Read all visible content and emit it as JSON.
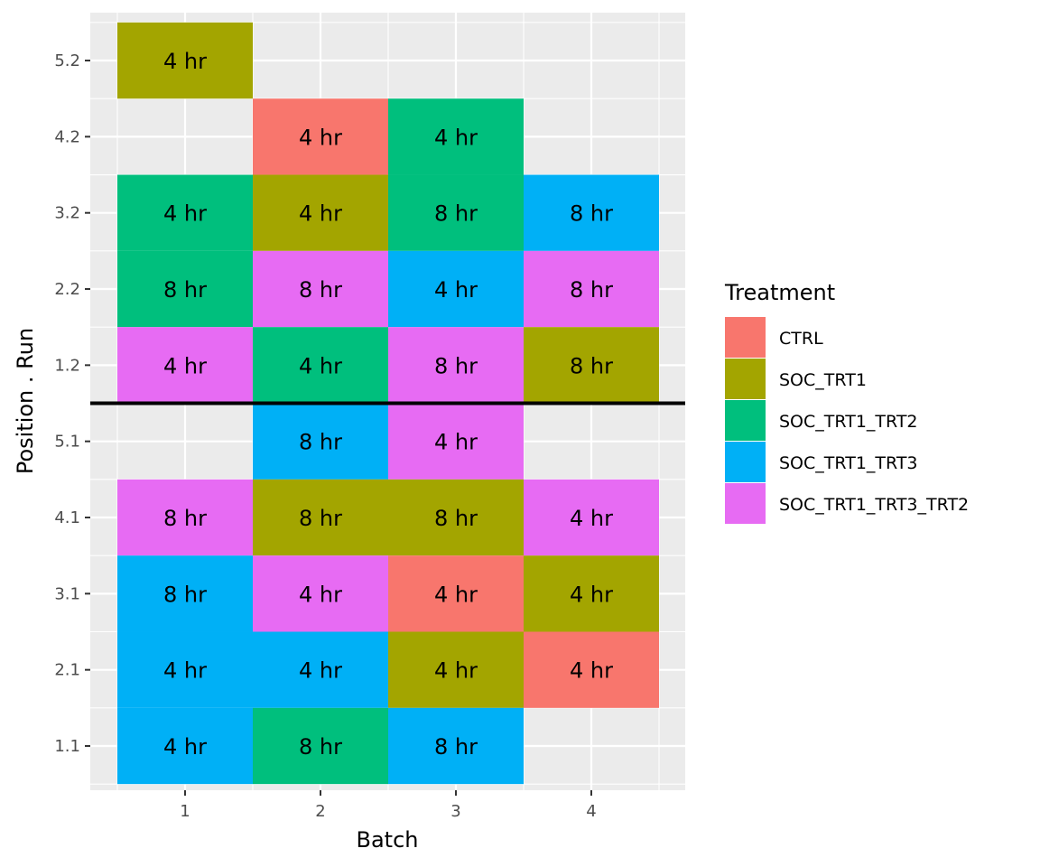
{
  "chart_data": {
    "type": "heatmap",
    "xlabel": "Batch",
    "ylabel": "Position . Run",
    "x_categories": [
      "1",
      "2",
      "3",
      "4"
    ],
    "y_categories": [
      "1.1",
      "2.1",
      "3.1",
      "4.1",
      "5.1",
      "1.2",
      "2.2",
      "3.2",
      "4.2",
      "5.2"
    ],
    "legend": {
      "title": "Treatment",
      "placement": "right",
      "entries": [
        {
          "name": "CTRL",
          "color": "#F8766D"
        },
        {
          "name": "SOC_TRT1",
          "color": "#A3A500"
        },
        {
          "name": "SOC_TRT1_TRT2",
          "color": "#00BF7D"
        },
        {
          "name": "SOC_TRT1_TRT3",
          "color": "#00B0F6"
        },
        {
          "name": "SOC_TRT1_TRT3_TRT2",
          "color": "#E76BF3"
        }
      ]
    },
    "reference_line": {
      "between": [
        "5.1",
        "1.2"
      ],
      "color": "#000000"
    },
    "grid": true,
    "cells": [
      {
        "x": "1",
        "y": "5.2",
        "treatment": "SOC_TRT1",
        "label": "4 hr"
      },
      {
        "x": "2",
        "y": "4.2",
        "treatment": "CTRL",
        "label": "4 hr"
      },
      {
        "x": "3",
        "y": "4.2",
        "treatment": "SOC_TRT1_TRT2",
        "label": "4 hr"
      },
      {
        "x": "1",
        "y": "3.2",
        "treatment": "SOC_TRT1_TRT2",
        "label": "4 hr"
      },
      {
        "x": "2",
        "y": "3.2",
        "treatment": "SOC_TRT1",
        "label": "4 hr"
      },
      {
        "x": "3",
        "y": "3.2",
        "treatment": "SOC_TRT1_TRT2",
        "label": "8 hr"
      },
      {
        "x": "4",
        "y": "3.2",
        "treatment": "SOC_TRT1_TRT3",
        "label": "8 hr"
      },
      {
        "x": "1",
        "y": "2.2",
        "treatment": "SOC_TRT1_TRT2",
        "label": "8 hr"
      },
      {
        "x": "2",
        "y": "2.2",
        "treatment": "SOC_TRT1_TRT3_TRT2",
        "label": "8 hr"
      },
      {
        "x": "3",
        "y": "2.2",
        "treatment": "SOC_TRT1_TRT3",
        "label": "4 hr"
      },
      {
        "x": "4",
        "y": "2.2",
        "treatment": "SOC_TRT1_TRT3_TRT2",
        "label": "8 hr"
      },
      {
        "x": "1",
        "y": "1.2",
        "treatment": "SOC_TRT1_TRT3_TRT2",
        "label": "4 hr"
      },
      {
        "x": "2",
        "y": "1.2",
        "treatment": "SOC_TRT1_TRT2",
        "label": "4 hr"
      },
      {
        "x": "3",
        "y": "1.2",
        "treatment": "SOC_TRT1_TRT3_TRT2",
        "label": "8 hr"
      },
      {
        "x": "4",
        "y": "1.2",
        "treatment": "SOC_TRT1",
        "label": "8 hr"
      },
      {
        "x": "2",
        "y": "5.1",
        "treatment": "SOC_TRT1_TRT3",
        "label": "8 hr"
      },
      {
        "x": "3",
        "y": "5.1",
        "treatment": "SOC_TRT1_TRT3_TRT2",
        "label": "4 hr"
      },
      {
        "x": "1",
        "y": "4.1",
        "treatment": "SOC_TRT1_TRT3_TRT2",
        "label": "8 hr"
      },
      {
        "x": "2",
        "y": "4.1",
        "treatment": "SOC_TRT1",
        "label": "8 hr"
      },
      {
        "x": "3",
        "y": "4.1",
        "treatment": "SOC_TRT1",
        "label": "8 hr"
      },
      {
        "x": "4",
        "y": "4.1",
        "treatment": "SOC_TRT1_TRT3_TRT2",
        "label": "4 hr"
      },
      {
        "x": "1",
        "y": "3.1",
        "treatment": "SOC_TRT1_TRT3",
        "label": "8 hr"
      },
      {
        "x": "2",
        "y": "3.1",
        "treatment": "SOC_TRT1_TRT3_TRT2",
        "label": "4 hr"
      },
      {
        "x": "3",
        "y": "3.1",
        "treatment": "CTRL",
        "label": "4 hr"
      },
      {
        "x": "4",
        "y": "3.1",
        "treatment": "SOC_TRT1",
        "label": "4 hr"
      },
      {
        "x": "1",
        "y": "2.1",
        "treatment": "SOC_TRT1_TRT3",
        "label": "4 hr"
      },
      {
        "x": "2",
        "y": "2.1",
        "treatment": "SOC_TRT1_TRT3",
        "label": "4 hr"
      },
      {
        "x": "3",
        "y": "2.1",
        "treatment": "SOC_TRT1",
        "label": "4 hr"
      },
      {
        "x": "4",
        "y": "2.1",
        "treatment": "CTRL",
        "label": "4 hr"
      },
      {
        "x": "1",
        "y": "1.1",
        "treatment": "SOC_TRT1_TRT3",
        "label": "4 hr"
      },
      {
        "x": "2",
        "y": "1.1",
        "treatment": "SOC_TRT1_TRT2",
        "label": "8 hr"
      },
      {
        "x": "3",
        "y": "1.1",
        "treatment": "SOC_TRT1_TRT3",
        "label": "8 hr"
      }
    ]
  }
}
